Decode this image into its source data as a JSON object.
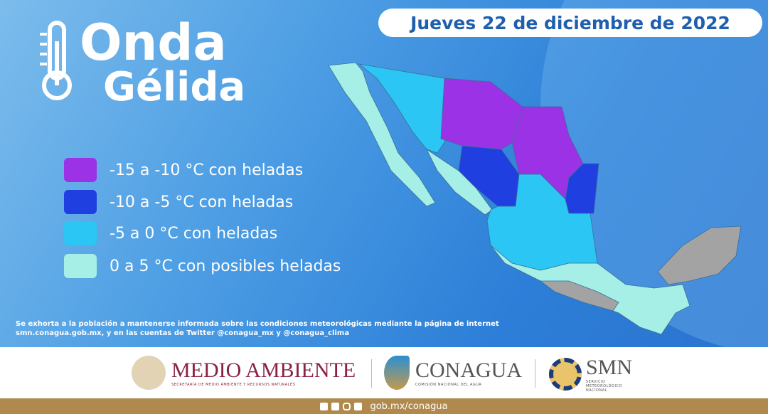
{
  "header": {
    "date": "Jueves 22 de diciembre de 2022",
    "title_line1": "Onda",
    "title_line2": "Gélida"
  },
  "legend": [
    {
      "label": "-15 a -10 °C con heladas",
      "color": "#9b32e6"
    },
    {
      "label": "-10 a -5 °C con heladas",
      "color": "#1f3fe0"
    },
    {
      "label": "-5 a 0 °C con heladas",
      "color": "#2bc6f4"
    },
    {
      "label": "0 a 5 °C con posibles heladas",
      "color": "#a6efe6"
    }
  ],
  "no_data_color": "#a3a3a3",
  "note": "Se exhorta a la población a mantenerse informada sobre las condiciones meteorológicas mediante la página de internet smn.conagua.gob.mx, y en las cuentas de Twitter @conagua_mx y @conagua_clima",
  "footer": {
    "medio_ambiente": "MEDIO AMBIENTE",
    "medio_ambiente_sub": "SECRETARÍA DE MEDIO AMBIENTE Y RECURSOS NATURALES",
    "conagua": "CONAGUA",
    "conagua_sub": "COMISIÓN NACIONAL DEL AGUA",
    "smn": "SMN",
    "smn_sub": "SERVICIO METEOROLÓGICO NACIONAL",
    "url": "gob.mx/conagua",
    "social_icons": [
      "facebook-icon",
      "twitter-icon",
      "instagram-icon",
      "youtube-icon"
    ]
  }
}
